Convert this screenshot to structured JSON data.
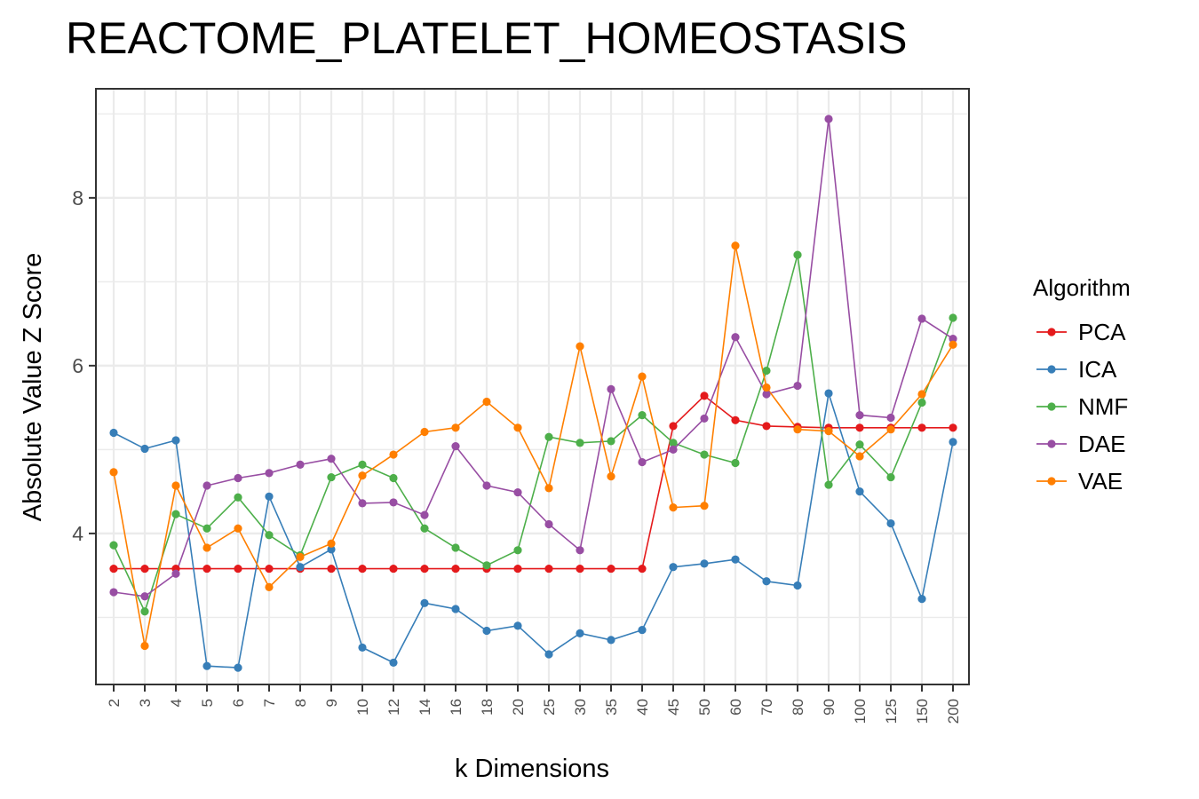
{
  "chart_data": {
    "type": "line",
    "title": "REACTOME_PLATELET_HOMEOSTASIS",
    "xlabel": "k Dimensions",
    "ylabel": "Absolute Value Z Score",
    "categories": [
      "2",
      "3",
      "4",
      "5",
      "6",
      "7",
      "8",
      "9",
      "10",
      "12",
      "14",
      "16",
      "18",
      "20",
      "25",
      "30",
      "35",
      "40",
      "45",
      "50",
      "60",
      "70",
      "80",
      "90",
      "100",
      "125",
      "150",
      "200"
    ],
    "ylim": [
      2.2,
      9.3
    ],
    "yticks": [
      4,
      6,
      8
    ],
    "grid": true,
    "legend": {
      "title": "Algorithm",
      "position": "right"
    },
    "series": [
      {
        "name": "PCA",
        "color": "#e41a1c",
        "values": [
          3.58,
          3.58,
          3.58,
          3.58,
          3.58,
          3.58,
          3.58,
          3.58,
          3.58,
          3.58,
          3.58,
          3.58,
          3.58,
          3.58,
          3.58,
          3.58,
          3.58,
          3.58,
          5.28,
          5.64,
          5.35,
          5.28,
          5.27,
          5.26,
          5.26,
          5.26,
          5.26,
          5.26
        ]
      },
      {
        "name": "ICA",
        "color": "#377eb8",
        "values": [
          5.2,
          5.01,
          5.11,
          2.42,
          2.4,
          4.44,
          3.6,
          3.81,
          2.64,
          2.46,
          3.17,
          3.1,
          2.84,
          2.9,
          2.56,
          2.81,
          2.73,
          2.85,
          3.6,
          3.64,
          3.69,
          3.43,
          3.38,
          5.67,
          4.5,
          4.12,
          3.22,
          5.09
        ]
      },
      {
        "name": "NMF",
        "color": "#4daf4a",
        "values": [
          3.86,
          3.07,
          4.23,
          4.06,
          4.43,
          3.98,
          3.74,
          4.67,
          4.82,
          4.66,
          4.06,
          3.83,
          3.62,
          3.8,
          5.15,
          5.08,
          5.1,
          5.41,
          5.08,
          4.94,
          4.84,
          5.94,
          7.32,
          4.58,
          5.06,
          4.67,
          5.56,
          6.57
        ]
      },
      {
        "name": "DAE",
        "color": "#984ea3",
        "values": [
          3.3,
          3.25,
          3.52,
          4.57,
          4.66,
          4.72,
          4.82,
          4.89,
          4.36,
          4.37,
          4.22,
          5.04,
          4.57,
          4.49,
          4.11,
          3.8,
          5.72,
          4.85,
          5.0,
          5.37,
          6.34,
          5.66,
          5.76,
          8.94,
          5.41,
          5.38,
          6.56,
          6.32
        ]
      },
      {
        "name": "VAE",
        "color": "#ff7f00",
        "values": [
          4.73,
          2.66,
          4.57,
          3.83,
          4.06,
          3.36,
          3.72,
          3.88,
          4.69,
          4.94,
          5.21,
          5.26,
          5.57,
          5.26,
          4.54,
          6.23,
          4.68,
          5.87,
          4.31,
          4.33,
          7.43,
          5.74,
          5.24,
          5.22,
          4.92,
          5.24,
          5.66,
          6.25
        ]
      }
    ]
  }
}
